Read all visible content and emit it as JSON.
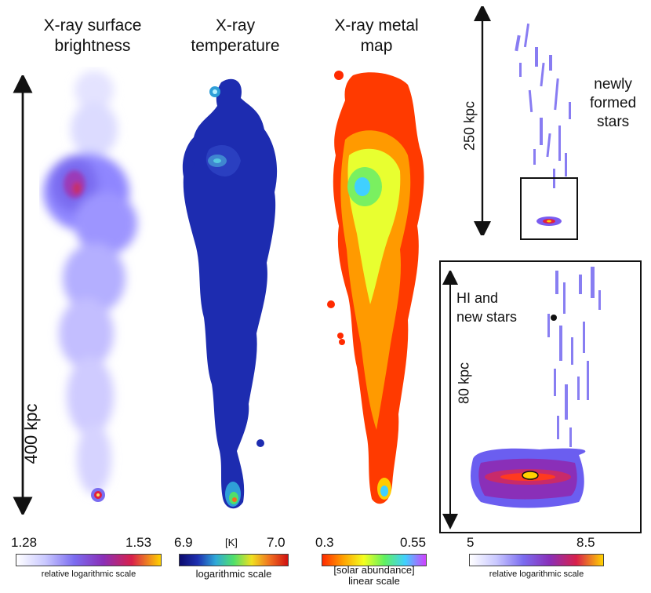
{
  "panels": {
    "surface_brightness": {
      "title_line1": "X-ray surface",
      "title_line2": "brightness",
      "scale_min": "1.28",
      "scale_max": "1.53",
      "scale_note": "relative logarithmic scale"
    },
    "temperature": {
      "title_line1": "X-ray",
      "title_line2": "temperature",
      "scale_min": "6.9",
      "scale_unit": "[K]",
      "scale_max": "7.0",
      "scale_note": "logarithmic scale"
    },
    "metal_map": {
      "title_line1": "X-ray metal",
      "title_line2": "map",
      "scale_min": "0.3",
      "scale_max": "0.55",
      "scale_note_line1": "[solar abundance]",
      "scale_note_line2": "linear scale"
    },
    "stars": {
      "label_line1": "newly",
      "label_line2": "formed",
      "label_line3": "stars"
    },
    "hi_inset": {
      "label_line1": "HI and",
      "label_line2": "new stars",
      "scale_min": "5",
      "scale_max": "8.5",
      "scale_note": "relative logarithmic scale"
    }
  },
  "scalebars": {
    "main": "400 kpc",
    "stars": "250 kpc",
    "inset": "80 kpc"
  },
  "colors": {
    "brightness_colormap": [
      "#ffffff",
      "#c9c8ff",
      "#7b6cf0",
      "#8a2fb8",
      "#d8204a",
      "#ffd200"
    ],
    "temperature_colormap": [
      "#0b0b6e",
      "#1d2fb0",
      "#2fa8d8",
      "#4fe06a",
      "#f0e020",
      "#f07020",
      "#d01010"
    ],
    "metal_colormap": [
      "#ff2a00",
      "#ffa000",
      "#f4ff20",
      "#60f060",
      "#40d0ff",
      "#d040ff"
    ]
  }
}
